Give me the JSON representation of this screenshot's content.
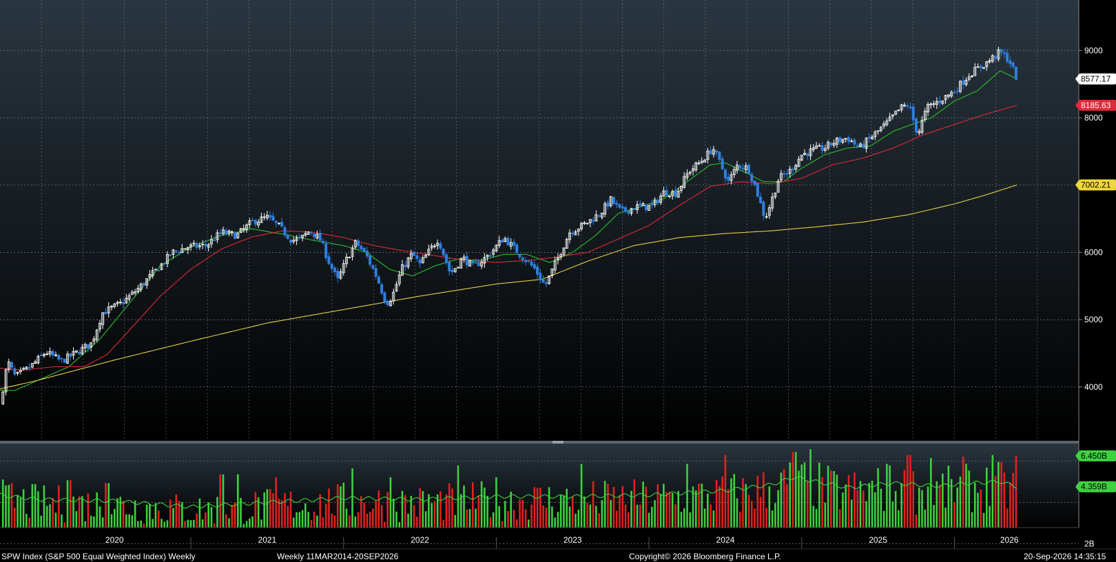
{
  "window": {
    "footer_left": "SPW Index (S&P 500 Equal Weighted Index) Weekly",
    "footer_mid": "Weekly 11MAR2014-20SEP2026",
    "footer_copyright": "Copyright© 2026 Bloomberg Finance L.P.",
    "footer_right": "20-Sep-2026 14:35:15"
  },
  "colors": {
    "up_candle": "#ffffff",
    "down_candle": "#2f7fe0",
    "ma_short": "#2bc02b",
    "ma_mid": "#e0283c",
    "ma_long": "#e6d24a",
    "volume_up": "#3fd13f",
    "volume_down": "#e22121",
    "volume_ma": "#3fd13f",
    "grid": "#7a7f86",
    "axis_text": "#ffffff"
  },
  "chart_data": {
    "type": "candlestick",
    "price_axis": {
      "ticks": [
        4000,
        5000,
        6000,
        7000,
        8000,
        9000
      ],
      "ylim": [
        3200,
        9750
      ]
    },
    "time_axis": {
      "labels": [
        "2020",
        "2021",
        "2022",
        "2023",
        "2024",
        "2025",
        "2026"
      ],
      "range": [
        2019.75,
        2026.72
      ]
    },
    "price_series_anchors": [
      [
        2019.75,
        3730
      ],
      [
        2019.8,
        4380
      ],
      [
        2019.85,
        4150
      ],
      [
        2019.95,
        4300
      ],
      [
        2020.05,
        4520
      ],
      [
        2020.15,
        4380
      ],
      [
        2020.25,
        4510
      ],
      [
        2020.35,
        4650
      ],
      [
        2020.42,
        5100
      ],
      [
        2020.55,
        5250
      ],
      [
        2020.65,
        5450
      ],
      [
        2020.78,
        5750
      ],
      [
        2020.88,
        6000
      ],
      [
        2020.98,
        6080
      ],
      [
        2021.1,
        6100
      ],
      [
        2021.2,
        6300
      ],
      [
        2021.3,
        6250
      ],
      [
        2021.4,
        6450
      ],
      [
        2021.5,
        6520
      ],
      [
        2021.58,
        6380
      ],
      [
        2021.66,
        6180
      ],
      [
        2021.72,
        6200
      ],
      [
        2021.78,
        6330
      ],
      [
        2021.85,
        6180
      ],
      [
        2021.9,
        5880
      ],
      [
        2021.96,
        5580
      ],
      [
        2022.02,
        5900
      ],
      [
        2022.08,
        6150
      ],
      [
        2022.15,
        5950
      ],
      [
        2022.22,
        5620
      ],
      [
        2022.28,
        5240
      ],
      [
        2022.32,
        5350
      ],
      [
        2022.38,
        5750
      ],
      [
        2022.45,
        5980
      ],
      [
        2022.5,
        5820
      ],
      [
        2022.58,
        6080
      ],
      [
        2022.62,
        6200
      ],
      [
        2022.7,
        5680
      ],
      [
        2022.78,
        5920
      ],
      [
        2022.85,
        5780
      ],
      [
        2022.95,
        5960
      ],
      [
        2023.05,
        6220
      ],
      [
        2023.15,
        5980
      ],
      [
        2023.25,
        5760
      ],
      [
        2023.32,
        5500
      ],
      [
        2023.4,
        5900
      ],
      [
        2023.48,
        6300
      ],
      [
        2023.58,
        6420
      ],
      [
        2023.68,
        6580
      ],
      [
        2023.75,
        6780
      ],
      [
        2023.82,
        6600
      ],
      [
        2023.92,
        6680
      ],
      [
        2024.02,
        6680
      ],
      [
        2024.1,
        6900
      ],
      [
        2024.18,
        6880
      ],
      [
        2024.26,
        7200
      ],
      [
        2024.34,
        7350
      ],
      [
        2024.42,
        7550
      ],
      [
        2024.47,
        7300
      ],
      [
        2024.52,
        7050
      ],
      [
        2024.58,
        7300
      ],
      [
        2024.65,
        7250
      ],
      [
        2024.7,
        6950
      ],
      [
        2024.76,
        6500
      ],
      [
        2024.8,
        6750
      ],
      [
        2024.85,
        7100
      ],
      [
        2024.92,
        7200
      ],
      [
        2025.0,
        7450
      ],
      [
        2025.08,
        7520
      ],
      [
        2025.15,
        7550
      ],
      [
        2025.22,
        7650
      ],
      [
        2025.3,
        7700
      ],
      [
        2025.38,
        7550
      ],
      [
        2025.45,
        7700
      ],
      [
        2025.55,
        7900
      ],
      [
        2025.65,
        8150
      ],
      [
        2025.7,
        8200
      ],
      [
        2025.76,
        7750
      ],
      [
        2025.82,
        8150
      ],
      [
        2025.9,
        8250
      ],
      [
        2026.0,
        8400
      ],
      [
        2026.1,
        8650
      ],
      [
        2026.2,
        8800
      ],
      [
        2026.3,
        8980
      ],
      [
        2026.36,
        8850
      ],
      [
        2026.41,
        8577
      ]
    ],
    "moving_averages": [
      {
        "label": "8577.17",
        "color_key": "ma_short",
        "anchors": [
          [
            2019.75,
            3950
          ],
          [
            2019.85,
            3950
          ],
          [
            2020.0,
            4100
          ],
          [
            2020.2,
            4300
          ],
          [
            2020.4,
            4700
          ],
          [
            2020.6,
            5250
          ],
          [
            2020.8,
            5800
          ],
          [
            2021.0,
            6080
          ],
          [
            2021.2,
            6250
          ],
          [
            2021.4,
            6350
          ],
          [
            2021.6,
            6270
          ],
          [
            2021.8,
            6180
          ],
          [
            2022.0,
            6100
          ],
          [
            2022.15,
            6000
          ],
          [
            2022.3,
            5750
          ],
          [
            2022.45,
            5650
          ],
          [
            2022.6,
            5800
          ],
          [
            2022.75,
            5900
          ],
          [
            2022.9,
            5880
          ],
          [
            2023.05,
            5970
          ],
          [
            2023.2,
            5970
          ],
          [
            2023.35,
            5850
          ],
          [
            2023.5,
            6000
          ],
          [
            2023.65,
            6250
          ],
          [
            2023.8,
            6580
          ],
          [
            2023.95,
            6680
          ],
          [
            2024.1,
            6800
          ],
          [
            2024.25,
            7050
          ],
          [
            2024.4,
            7300
          ],
          [
            2024.5,
            7330
          ],
          [
            2024.62,
            7200
          ],
          [
            2024.75,
            7050
          ],
          [
            2024.88,
            7050
          ],
          [
            2025.0,
            7250
          ],
          [
            2025.15,
            7450
          ],
          [
            2025.3,
            7550
          ],
          [
            2025.45,
            7580
          ],
          [
            2025.6,
            7800
          ],
          [
            2025.72,
            7900
          ],
          [
            2025.85,
            8000
          ],
          [
            2026.0,
            8250
          ],
          [
            2026.15,
            8400
          ],
          [
            2026.3,
            8700
          ],
          [
            2026.41,
            8577
          ]
        ]
      },
      {
        "label": "8185.63",
        "color_key": "ma_mid",
        "anchors": [
          [
            2019.75,
            4280
          ],
          [
            2019.9,
            4250
          ],
          [
            2020.1,
            4300
          ],
          [
            2020.3,
            4300
          ],
          [
            2020.45,
            4480
          ],
          [
            2020.6,
            4850
          ],
          [
            2020.8,
            5350
          ],
          [
            2021.0,
            5750
          ],
          [
            2021.2,
            6050
          ],
          [
            2021.4,
            6230
          ],
          [
            2021.6,
            6320
          ],
          [
            2021.8,
            6300
          ],
          [
            2022.0,
            6220
          ],
          [
            2022.2,
            6100
          ],
          [
            2022.4,
            6020
          ],
          [
            2022.6,
            5950
          ],
          [
            2022.8,
            5880
          ],
          [
            2023.0,
            5850
          ],
          [
            2023.2,
            5880
          ],
          [
            2023.4,
            5930
          ],
          [
            2023.6,
            6000
          ],
          [
            2023.8,
            6200
          ],
          [
            2024.0,
            6400
          ],
          [
            2024.2,
            6700
          ],
          [
            2024.4,
            6980
          ],
          [
            2024.6,
            7050
          ],
          [
            2024.8,
            7020
          ],
          [
            2025.0,
            7100
          ],
          [
            2025.2,
            7300
          ],
          [
            2025.4,
            7400
          ],
          [
            2025.6,
            7550
          ],
          [
            2025.8,
            7750
          ],
          [
            2026.0,
            7900
          ],
          [
            2026.2,
            8050
          ],
          [
            2026.41,
            8185
          ]
        ]
      },
      {
        "label": "7002.21",
        "color_key": "ma_long",
        "anchors": [
          [
            2019.75,
            3970
          ],
          [
            2020.0,
            4100
          ],
          [
            2020.5,
            4400
          ],
          [
            2021.0,
            4680
          ],
          [
            2021.5,
            4950
          ],
          [
            2022.0,
            5150
          ],
          [
            2022.5,
            5350
          ],
          [
            2023.0,
            5530
          ],
          [
            2023.3,
            5600
          ],
          [
            2023.6,
            5870
          ],
          [
            2023.9,
            6100
          ],
          [
            2024.2,
            6220
          ],
          [
            2024.5,
            6280
          ],
          [
            2024.8,
            6320
          ],
          [
            2025.1,
            6380
          ],
          [
            2025.4,
            6450
          ],
          [
            2025.7,
            6560
          ],
          [
            2026.0,
            6720
          ],
          [
            2026.2,
            6850
          ],
          [
            2026.41,
            7002
          ]
        ]
      }
    ],
    "volume": {
      "axis_ticks": [
        "2B"
      ],
      "labels": {
        "latest": "6.450B",
        "average": "4.359B"
      },
      "values_scale": [
        1.6,
        7.0
      ],
      "average_anchors": [
        [
          2019.75,
          3.8
        ],
        [
          2020.0,
          3.5
        ],
        [
          2020.5,
          3.4
        ],
        [
          2021.0,
          3.0
        ],
        [
          2021.5,
          3.3
        ],
        [
          2022.0,
          3.6
        ],
        [
          2022.5,
          3.5
        ],
        [
          2023.0,
          3.7
        ],
        [
          2023.5,
          3.7
        ],
        [
          2024.0,
          3.8
        ],
        [
          2024.5,
          4.1
        ],
        [
          2024.8,
          4.5
        ],
        [
          2024.95,
          5.0
        ],
        [
          2025.3,
          4.3
        ],
        [
          2025.6,
          4.6
        ],
        [
          2025.9,
          4.4
        ],
        [
          2026.1,
          4.6
        ],
        [
          2026.3,
          4.7
        ],
        [
          2026.41,
          4.36
        ]
      ],
      "spikes": [
        [
          2020.2,
          4.8
        ],
        [
          2020.45,
          4.6
        ],
        [
          2021.2,
          5.2
        ],
        [
          2021.3,
          5.2
        ],
        [
          2021.55,
          5.0
        ],
        [
          2022.05,
          5.6
        ],
        [
          2022.3,
          5.0
        ],
        [
          2022.75,
          5.8
        ],
        [
          2023.0,
          5.0
        ],
        [
          2023.55,
          5.9
        ],
        [
          2024.25,
          5.9
        ],
        [
          2024.5,
          6.5
        ],
        [
          2024.95,
          6.7
        ],
        [
          2025.05,
          6.9
        ],
        [
          2025.55,
          5.9
        ],
        [
          2025.7,
          6.5
        ],
        [
          2025.85,
          6.3
        ],
        [
          2026.05,
          6.4
        ],
        [
          2026.25,
          6.5
        ],
        [
          2026.4,
          6.45
        ]
      ]
    }
  }
}
